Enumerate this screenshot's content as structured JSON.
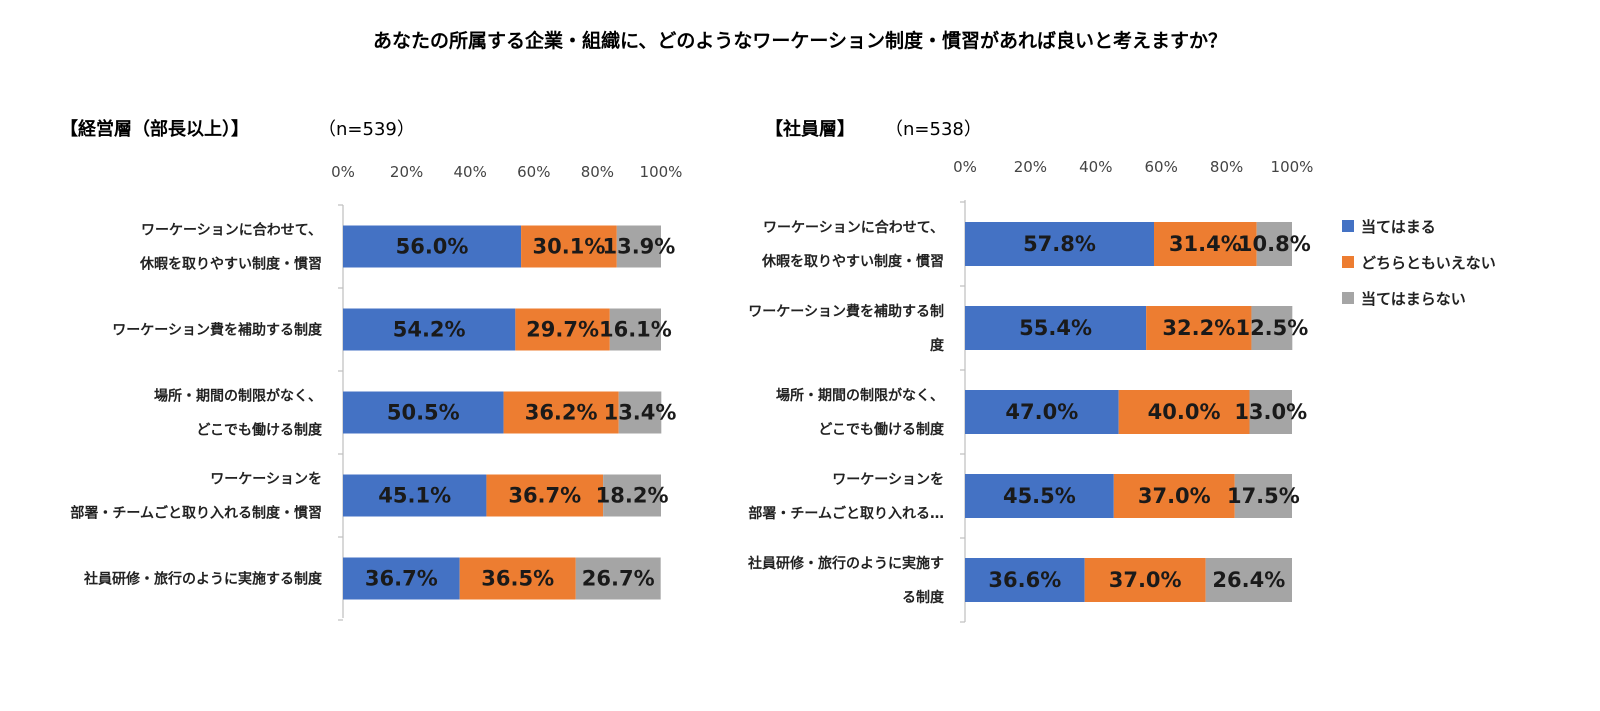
{
  "title": "あなたの所属する企業・組織に、どのようなワーケーション制度・慣習があれば良いと考えますか？",
  "colors": {
    "agree": "#4472C4",
    "neutral": "#ED7D31",
    "disagree": "#A5A5A5",
    "axis": "#BFBFBF"
  },
  "legend": [
    {
      "key": "agree",
      "label": "当てはまる"
    },
    {
      "key": "neutral",
      "label": "どちらともいえない"
    },
    {
      "key": "disagree",
      "label": "当てはまらない"
    }
  ],
  "chart_data": [
    {
      "type": "bar",
      "orientation": "horizontal",
      "stacked": "percent",
      "heading": "【経営層（部長以上）】",
      "n_label": "（n=539）",
      "xlim": [
        0,
        100
      ],
      "xticks": [
        "0%",
        "20%",
        "40%",
        "60%",
        "80%",
        "100%"
      ],
      "categories": [
        [
          "ワーケーションに合わせて、",
          "休暇を取りやすい制度・慣習"
        ],
        [
          "ワーケーション費を補助する制度"
        ],
        [
          "場所・期間の制限がなく、",
          "どこでも働ける制度"
        ],
        [
          "ワーケーションを",
          "部署・チームごと取り入れる制度・慣習"
        ],
        [
          "社員研修・旅行のように実施する制度"
        ]
      ],
      "series": [
        {
          "name": "当てはまる",
          "key": "agree",
          "values": [
            56.0,
            54.2,
            50.5,
            45.1,
            36.7
          ],
          "labels": [
            "56.0%",
            "54.2%",
            "50.5%",
            "45.1%",
            "36.7%"
          ]
        },
        {
          "name": "どちらともいえない",
          "key": "neutral",
          "values": [
            30.1,
            29.7,
            36.2,
            36.7,
            36.5
          ],
          "labels": [
            "30.1%",
            "29.7%",
            "36.2%",
            "36.7%",
            "36.5%"
          ]
        },
        {
          "name": "当てはまらない",
          "key": "disagree",
          "values": [
            13.9,
            16.1,
            13.4,
            18.2,
            26.7
          ],
          "labels": [
            "13.9%",
            "16.1%",
            "13.4%",
            "18.2%",
            "26.7%"
          ]
        }
      ]
    },
    {
      "type": "bar",
      "orientation": "horizontal",
      "stacked": "percent",
      "heading": "【社員層】",
      "n_label": "（n=538）",
      "xlim": [
        0,
        100
      ],
      "xticks": [
        "0%",
        "20%",
        "40%",
        "60%",
        "80%",
        "100%"
      ],
      "categories": [
        [
          "ワーケーションに合わせて、",
          "休暇を取りやすい制度・慣習"
        ],
        [
          "ワーケーション費を補助する制",
          "度"
        ],
        [
          "場所・期間の制限がなく、",
          "どこでも働ける制度"
        ],
        [
          "ワーケーションを",
          "部署・チームごと取り入れる…"
        ],
        [
          "社員研修・旅行のように実施す",
          "る制度"
        ]
      ],
      "series": [
        {
          "name": "当てはまる",
          "key": "agree",
          "values": [
            57.8,
            55.4,
            47.0,
            45.5,
            36.6
          ],
          "labels": [
            "57.8%",
            "55.4%",
            "47.0%",
            "45.5%",
            "36.6%"
          ]
        },
        {
          "name": "どちらともいえない",
          "key": "neutral",
          "values": [
            31.4,
            32.2,
            40.0,
            37.0,
            37.0
          ],
          "labels": [
            "31.4%",
            "32.2%",
            "40.0%",
            "37.0%",
            "37.0%"
          ]
        },
        {
          "name": "当てはまらない",
          "key": "disagree",
          "values": [
            10.8,
            12.5,
            13.0,
            17.5,
            26.4
          ],
          "labels": [
            "10.8%",
            "12.5%",
            "13.0%",
            "17.5%",
            "26.4%"
          ]
        }
      ]
    }
  ]
}
